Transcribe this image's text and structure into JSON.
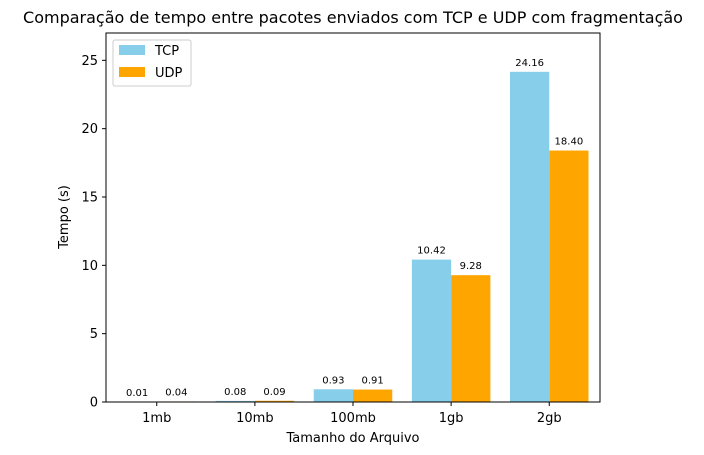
{
  "chart_data": {
    "type": "bar",
    "title": "Comparação de tempo entre pacotes enviados com TCP e UDP com fragmentação",
    "xlabel": "Tamanho do Arquivo",
    "ylabel": "Tempo (s)",
    "categories": [
      "1mb",
      "10mb",
      "100mb",
      "1gb",
      "2gb"
    ],
    "series": [
      {
        "name": "TCP",
        "color": "#87CEEB",
        "values": [
          0.01,
          0.08,
          0.93,
          10.42,
          24.16
        ],
        "labels": [
          "0.01",
          "0.08",
          "0.93",
          "10.42",
          "24.16"
        ]
      },
      {
        "name": "UDP",
        "color": "#FFA500",
        "values": [
          0.04,
          0.09,
          0.91,
          9.28,
          18.4
        ],
        "labels": [
          "0.04",
          "0.09",
          "0.91",
          "9.28",
          "18.40"
        ]
      }
    ],
    "yticks": [
      0,
      5,
      10,
      15,
      20,
      25
    ],
    "ylim": [
      0,
      27
    ],
    "grid": false,
    "legend_position": "top-left"
  }
}
